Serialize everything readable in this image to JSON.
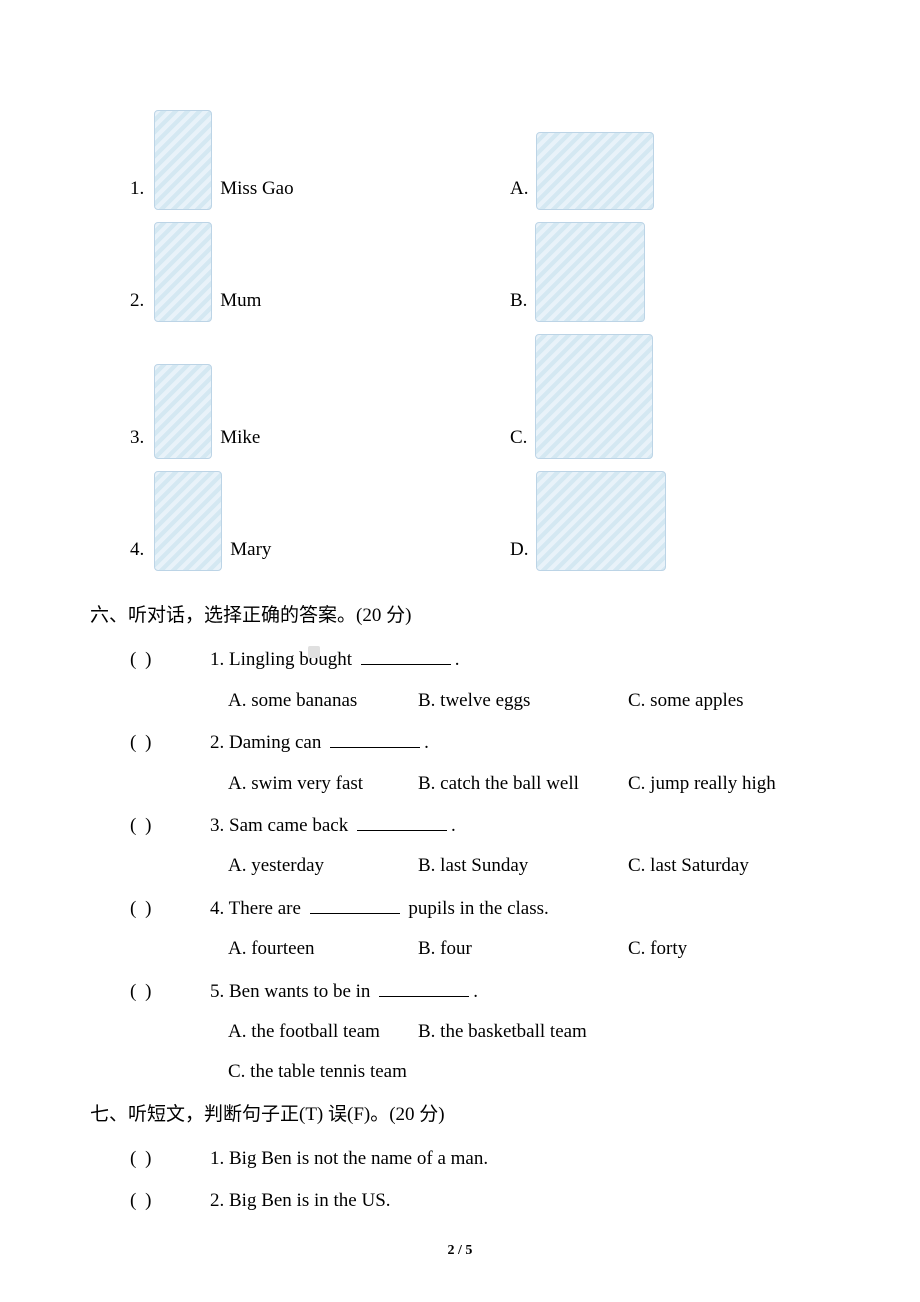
{
  "matching": {
    "items": [
      {
        "num": "1.",
        "label": "Miss Gao",
        "letter": "A.",
        "leftImgClass": "img-person",
        "rightImgClass": "img-scene-a"
      },
      {
        "num": "2.",
        "label": "Mum",
        "letter": "B.",
        "leftImgClass": "img-person",
        "rightImgClass": "img-scene-b"
      },
      {
        "num": "3.",
        "label": "Mike",
        "letter": "C.",
        "leftImgClass": "img-person-small",
        "rightImgClass": "img-scene-c"
      },
      {
        "num": "4.",
        "label": "Mary",
        "letter": "D.",
        "leftImgClass": "img-girl",
        "rightImgClass": "img-scene-d"
      }
    ]
  },
  "section6": {
    "title": "六、听对话，选择正确的答案。(20 分)",
    "questions": [
      {
        "paren": "(          )",
        "stem_before": "1. Lingling bought ",
        "stem_after": ".",
        "opts": {
          "a": "A. some bananas",
          "b": "B. twelve eggs",
          "c": "C. some apples"
        }
      },
      {
        "paren": "(          )",
        "stem_before": "2. Daming can ",
        "stem_after": ".",
        "opts": {
          "a": "A. swim very fast",
          "b": "B. catch the ball well",
          "c": "C. jump really high"
        }
      },
      {
        "paren": "(          )",
        "stem_before": "3. Sam came back ",
        "stem_after": ".",
        "opts": {
          "a": "A. yesterday",
          "b": "B. last Sunday",
          "c": "C. last Saturday"
        }
      },
      {
        "paren": "(          )",
        "stem_before": "4. There are ",
        "stem_after": " pupils in the class.",
        "opts": {
          "a": "A. fourteen",
          "b": "B. four",
          "c": "C. forty"
        }
      },
      {
        "paren": "(          )",
        "stem_before": "5. Ben wants to be in ",
        "stem_after": ".",
        "opts": {
          "a": "A. the football team",
          "b": "B. the basketball team",
          "c": "C. the table tennis team"
        }
      }
    ]
  },
  "section7": {
    "title": "七、听短文，判断句子正(T)  误(F)。(20 分)",
    "items": [
      {
        "paren": "(          )",
        "text": "1. Big Ben is not the name of a man."
      },
      {
        "paren": "(          )",
        "text": "2. Big Ben is in the US."
      }
    ]
  },
  "footer": "2 / 5"
}
